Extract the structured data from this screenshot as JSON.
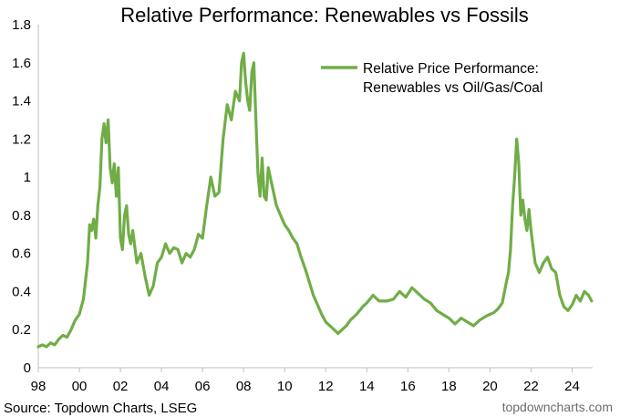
{
  "colors": {
    "series": "#70ad47",
    "axis": "#bfbfbf",
    "brand": "#6d6d6d"
  },
  "source": "Source: Topdown Charts, LSEG",
  "brand": "topdowncharts.com",
  "chart_data": {
    "type": "line",
    "title": "Relative Performance: Renewables vs Fossils",
    "xlabel": "",
    "ylabel": "",
    "grid": false,
    "legend_position": "top-right",
    "xlim": [
      1998,
      2025
    ],
    "ylim": [
      0,
      1.8
    ],
    "yticks": [
      0,
      0.2,
      0.4,
      0.6,
      0.8,
      1,
      1.2,
      1.4,
      1.6,
      1.8
    ],
    "yticklabels": [
      "0",
      "0.2",
      "0.4",
      "0.6",
      "0.8",
      "1",
      "1.2",
      "1.4",
      "1.6",
      "1.8"
    ],
    "xticks": [
      1998,
      2000,
      2002,
      2004,
      2006,
      2008,
      2010,
      2012,
      2014,
      2016,
      2018,
      2020,
      2022,
      2024
    ],
    "xticklabels": [
      "98",
      "00",
      "02",
      "04",
      "06",
      "08",
      "10",
      "12",
      "14",
      "16",
      "18",
      "20",
      "22",
      "24"
    ],
    "legend": [
      "Relative Price Performance:",
      "Renewables vs Oil/Gas/Coal"
    ],
    "series": [
      {
        "name": "Relative Price Performance: Renewables vs Oil/Gas/Coal",
        "x": [
          1998.0,
          1998.2,
          1998.4,
          1998.6,
          1998.8,
          1999.0,
          1999.2,
          1999.4,
          1999.6,
          1999.8,
          2000.0,
          2000.2,
          2000.4,
          2000.5,
          2000.6,
          2000.7,
          2000.8,
          2000.9,
          2001.0,
          2001.1,
          2001.2,
          2001.3,
          2001.4,
          2001.5,
          2001.6,
          2001.7,
          2001.8,
          2001.9,
          2002.0,
          2002.1,
          2002.2,
          2002.3,
          2002.4,
          2002.5,
          2002.6,
          2002.8,
          2003.0,
          2003.2,
          2003.4,
          2003.6,
          2003.8,
          2004.0,
          2004.2,
          2004.4,
          2004.6,
          2004.8,
          2005.0,
          2005.2,
          2005.4,
          2005.6,
          2005.8,
          2006.0,
          2006.2,
          2006.4,
          2006.6,
          2006.8,
          2007.0,
          2007.2,
          2007.4,
          2007.6,
          2007.8,
          2007.9,
          2008.0,
          2008.1,
          2008.2,
          2008.3,
          2008.4,
          2008.5,
          2008.6,
          2008.7,
          2008.8,
          2008.9,
          2009.0,
          2009.1,
          2009.2,
          2009.4,
          2009.6,
          2009.8,
          2010.0,
          2010.2,
          2010.4,
          2010.6,
          2010.8,
          2011.0,
          2011.2,
          2011.4,
          2011.6,
          2011.8,
          2012.0,
          2012.2,
          2012.4,
          2012.6,
          2012.8,
          2013.0,
          2013.2,
          2013.5,
          2013.8,
          2014.0,
          2014.3,
          2014.6,
          2015.0,
          2015.3,
          2015.6,
          2015.9,
          2016.2,
          2016.5,
          2016.8,
          2017.1,
          2017.4,
          2017.7,
          2018.0,
          2018.3,
          2018.6,
          2018.9,
          2019.2,
          2019.5,
          2019.8,
          2020.0,
          2020.2,
          2020.4,
          2020.6,
          2020.8,
          2020.9,
          2021.0,
          2021.1,
          2021.2,
          2021.3,
          2021.4,
          2021.5,
          2021.6,
          2021.7,
          2021.8,
          2021.9,
          2022.0,
          2022.2,
          2022.4,
          2022.6,
          2022.8,
          2023.0,
          2023.2,
          2023.4,
          2023.6,
          2023.8,
          2024.0,
          2024.2,
          2024.4,
          2024.6,
          2024.8,
          2024.95
        ],
        "values": [
          0.11,
          0.12,
          0.11,
          0.13,
          0.12,
          0.15,
          0.17,
          0.16,
          0.2,
          0.25,
          0.28,
          0.36,
          0.55,
          0.75,
          0.72,
          0.78,
          0.68,
          0.85,
          0.95,
          1.2,
          1.28,
          1.18,
          1.3,
          1.05,
          0.97,
          1.07,
          0.9,
          1.05,
          0.68,
          0.62,
          0.8,
          0.85,
          0.7,
          0.65,
          0.72,
          0.55,
          0.6,
          0.48,
          0.38,
          0.43,
          0.55,
          0.58,
          0.65,
          0.6,
          0.63,
          0.62,
          0.55,
          0.6,
          0.58,
          0.62,
          0.7,
          0.68,
          0.85,
          1.0,
          0.9,
          0.92,
          1.2,
          1.38,
          1.3,
          1.45,
          1.4,
          1.6,
          1.65,
          1.5,
          1.4,
          1.35,
          1.55,
          1.6,
          1.3,
          1.02,
          0.9,
          1.1,
          0.9,
          0.88,
          1.05,
          0.95,
          0.85,
          0.8,
          0.75,
          0.72,
          0.68,
          0.65,
          0.58,
          0.52,
          0.45,
          0.38,
          0.33,
          0.28,
          0.24,
          0.22,
          0.2,
          0.18,
          0.2,
          0.22,
          0.25,
          0.28,
          0.32,
          0.34,
          0.38,
          0.35,
          0.35,
          0.36,
          0.4,
          0.37,
          0.42,
          0.39,
          0.36,
          0.34,
          0.3,
          0.28,
          0.26,
          0.23,
          0.26,
          0.24,
          0.22,
          0.25,
          0.27,
          0.28,
          0.29,
          0.31,
          0.34,
          0.45,
          0.5,
          0.62,
          0.85,
          1.0,
          1.2,
          1.08,
          0.8,
          0.88,
          0.78,
          0.72,
          0.83,
          0.72,
          0.55,
          0.5,
          0.55,
          0.58,
          0.52,
          0.5,
          0.38,
          0.32,
          0.3,
          0.33,
          0.38,
          0.35,
          0.4,
          0.38,
          0.35
        ]
      }
    ]
  }
}
